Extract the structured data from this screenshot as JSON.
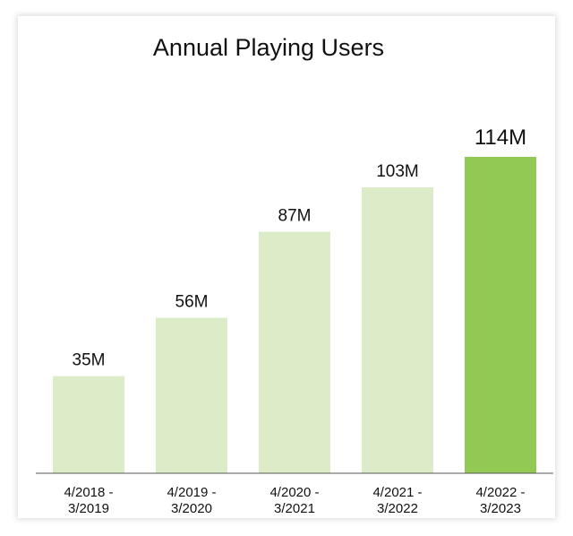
{
  "chart_data": {
    "type": "bar",
    "title": "Annual Playing Users",
    "categories": [
      [
        "4/2018 -",
        "3/2019"
      ],
      [
        "4/2019 -",
        "3/2020"
      ],
      [
        "4/2020 -",
        "3/2021"
      ],
      [
        "4/2021 -",
        "3/2022"
      ],
      [
        "4/2022 -",
        "3/2023"
      ]
    ],
    "values": [
      35,
      56,
      87,
      103,
      114
    ],
    "data_labels": [
      "35M",
      "56M",
      "87M",
      "103M",
      "114M"
    ],
    "unit": "M",
    "highlight_index": 4,
    "ylim": [
      0,
      114
    ],
    "colors": {
      "bar": "#dcebc8",
      "highlight": "#92c854",
      "axis": "#555555"
    }
  }
}
